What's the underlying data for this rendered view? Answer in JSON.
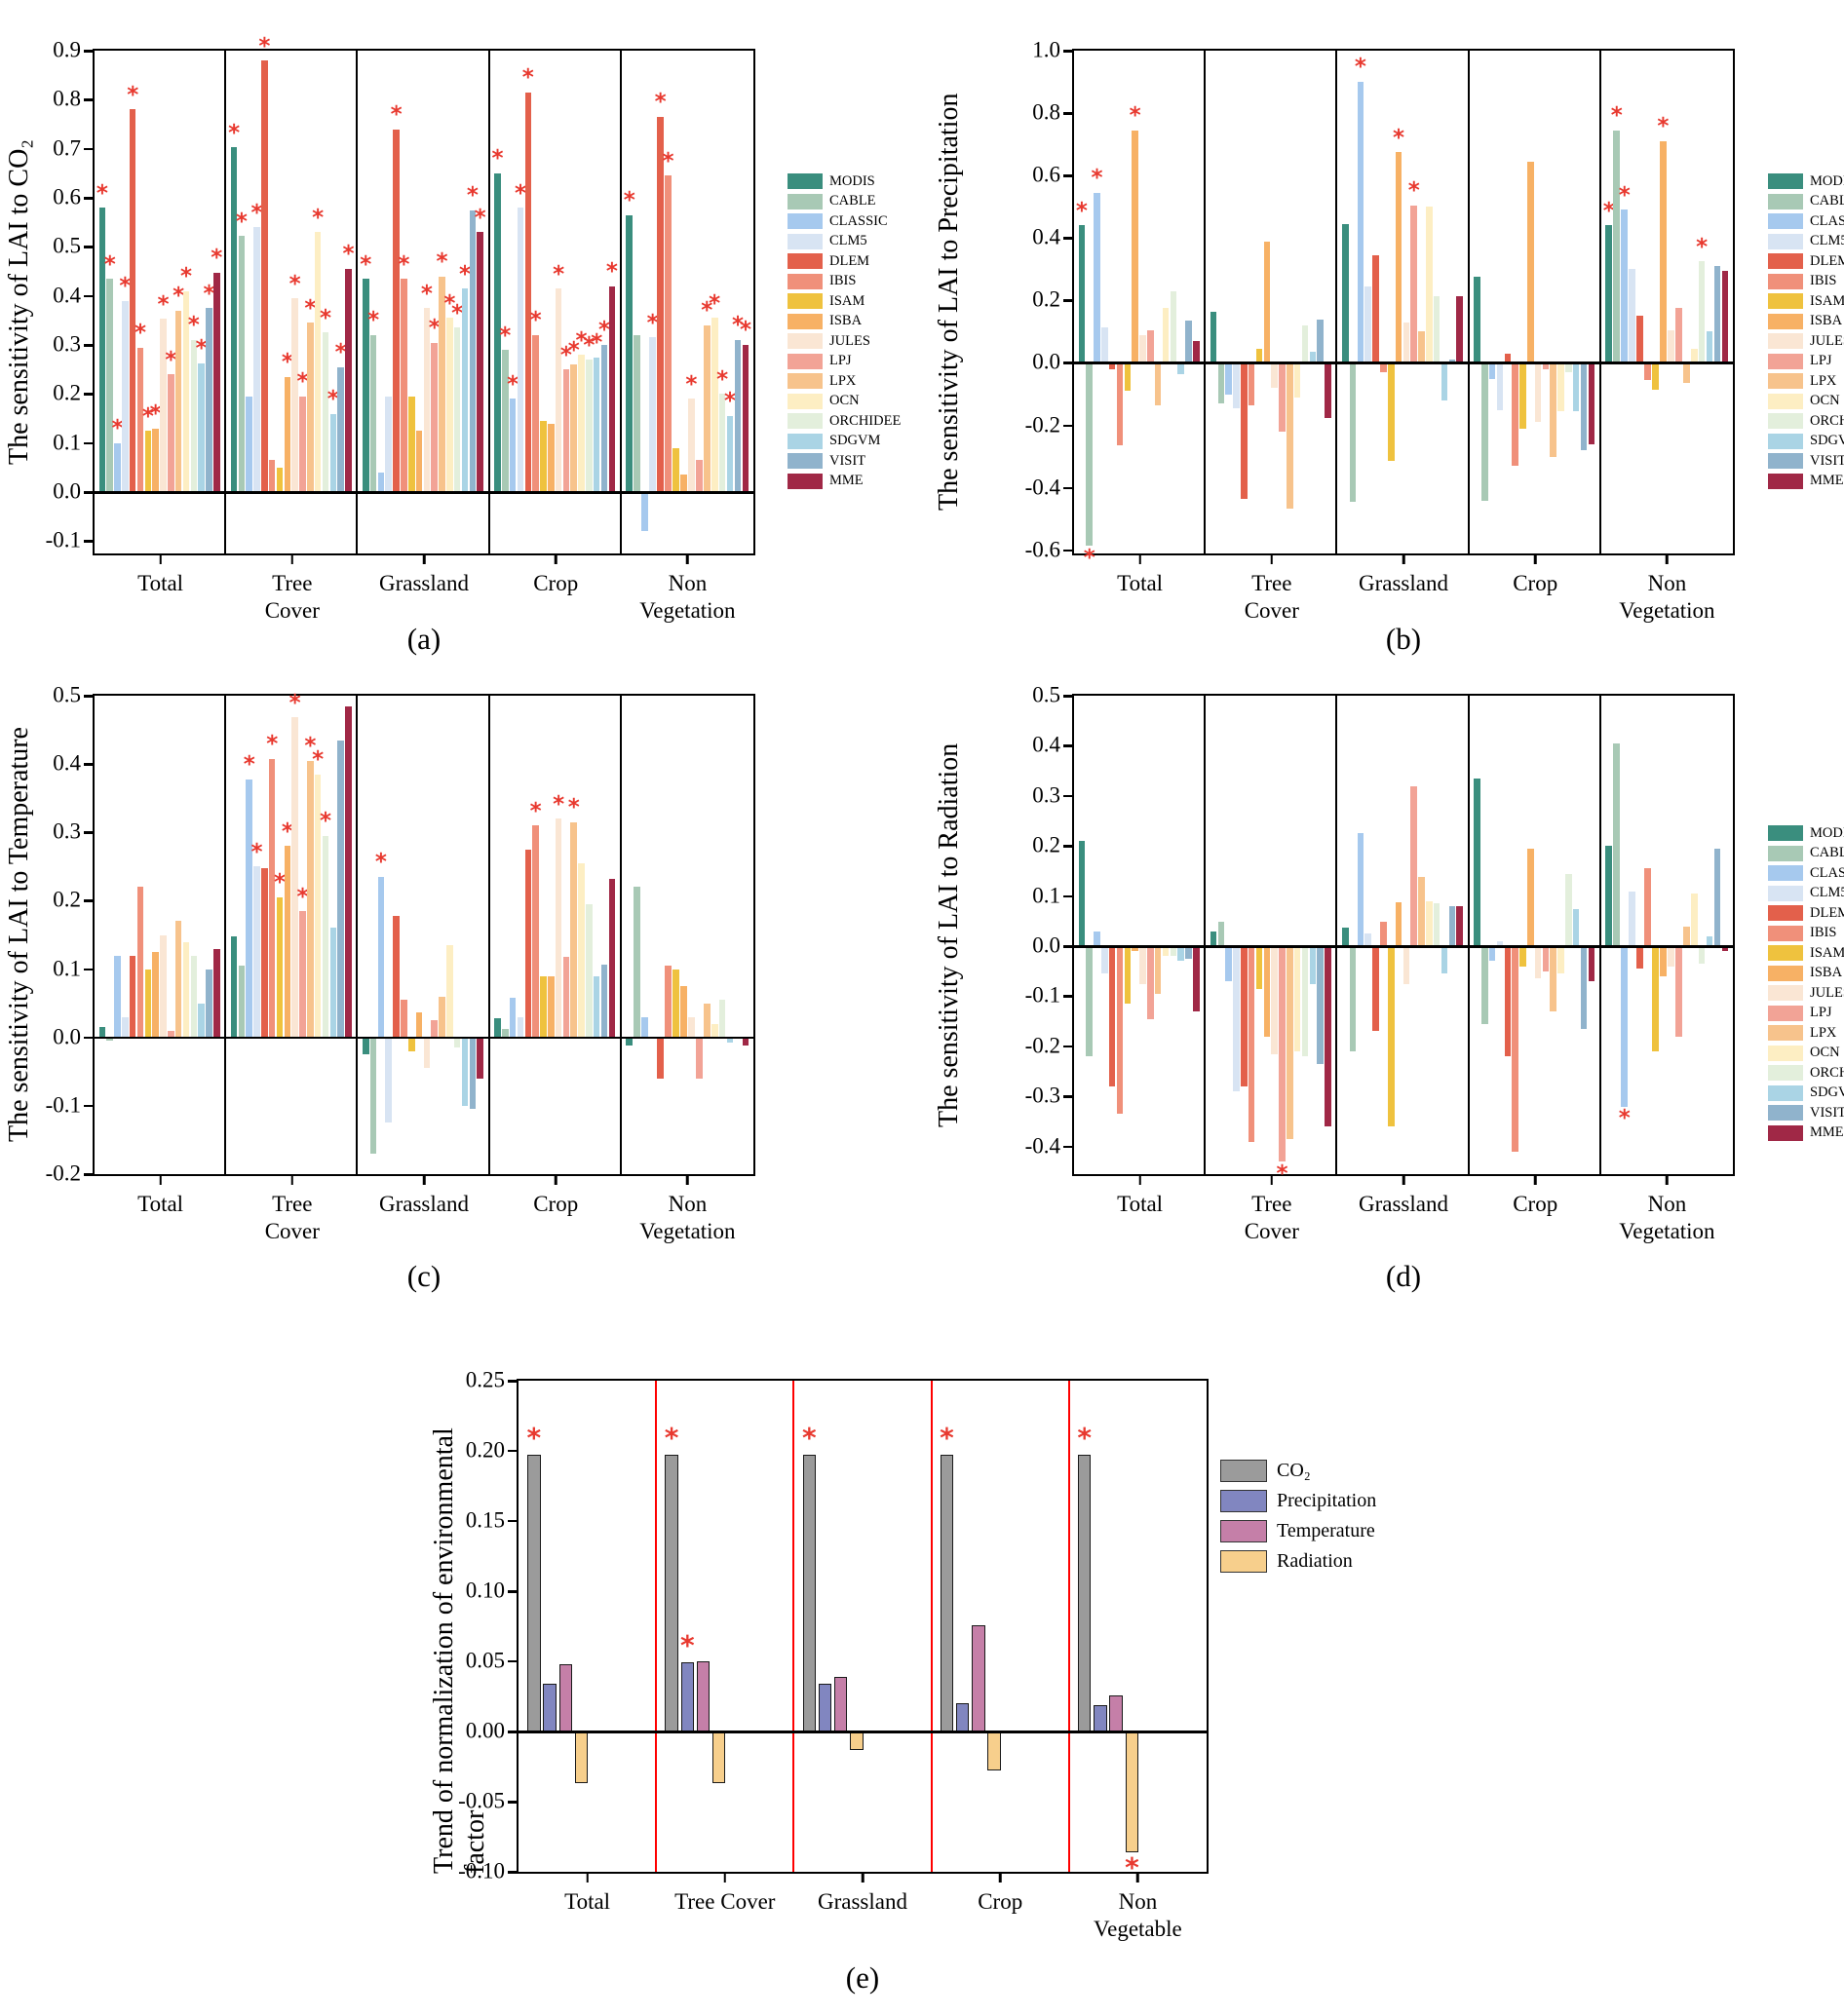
{
  "models": [
    {
      "label": "MODIS",
      "color": "#3a8e7e"
    },
    {
      "label": "CABLE",
      "color": "#a8c9b5"
    },
    {
      "label": "CLASSIC",
      "color": "#a6c9ee"
    },
    {
      "label": "CLM5",
      "color": "#d8e4f3"
    },
    {
      "label": "DLEM",
      "color": "#e3604b"
    },
    {
      "label": "IBIS",
      "color": "#f0907a"
    },
    {
      "label": "ISAM",
      "color": "#efc23e"
    },
    {
      "label": "ISBA",
      "color": "#f7b165"
    },
    {
      "label": "JULES",
      "color": "#fae6d4"
    },
    {
      "label": "LPJ",
      "color": "#f2a396"
    },
    {
      "label": "LPX",
      "color": "#f7c38c"
    },
    {
      "label": "OCN",
      "color": "#fdeec3"
    },
    {
      "label": "ORCHIDEE",
      "color": "#e3efdc"
    },
    {
      "label": "SDGVM",
      "color": "#aad4e5"
    },
    {
      "label": "VISIT",
      "color": "#90b3cc"
    },
    {
      "label": "MME",
      "color": "#a02846"
    }
  ],
  "star_color": "#e8392f",
  "chart_data": [
    {
      "id": "a",
      "type": "bar",
      "letter": "(a)",
      "ylabel": "The sensitivity of LAI to CO₂",
      "ymax": 0.9,
      "ymin": -0.125,
      "yticks": [
        "0.9",
        "0.8",
        "0.7",
        "0.6",
        "0.5",
        "0.4",
        "0.3",
        "0.2",
        "0.1",
        "0.0",
        "-0.1"
      ],
      "categories": [
        "Total",
        "Tree\nCover",
        "Grassland",
        "Crop",
        "Non\nVegetation"
      ],
      "values": [
        [
          0.58,
          0.435,
          0.1,
          0.39,
          0.78,
          0.295,
          0.125,
          0.13,
          0.353,
          0.24,
          0.37,
          0.41,
          0.31,
          0.263,
          0.375,
          0.448
        ],
        [
          0.703,
          0.522,
          0.195,
          0.54,
          0.88,
          0.065,
          0.05,
          0.235,
          0.395,
          0.195,
          0.345,
          0.53,
          0.325,
          0.16,
          0.255,
          0.455
        ],
        [
          0.435,
          0.32,
          0.04,
          0.195,
          0.74,
          0.435,
          0.195,
          0.125,
          0.375,
          0.305,
          0.44,
          0.355,
          0.335,
          0.415,
          0.575,
          0.53
        ],
        [
          0.65,
          0.29,
          0.19,
          0.58,
          0.815,
          0.32,
          0.145,
          0.14,
          0.415,
          0.25,
          0.26,
          0.28,
          0.27,
          0.275,
          0.3,
          0.42
        ],
        [
          0.565,
          0.32,
          -0.08,
          0.315,
          0.765,
          0.645,
          0.09,
          0.035,
          0.19,
          0.065,
          0.34,
          0.355,
          0.2,
          0.155,
          0.31,
          0.3
        ]
      ],
      "stars": [
        [
          1,
          1,
          1,
          1,
          1,
          1,
          1,
          1,
          1,
          1,
          1,
          1,
          1,
          1,
          1,
          1
        ],
        [
          1,
          1,
          0,
          1,
          1,
          0,
          0,
          1,
          1,
          1,
          1,
          1,
          1,
          1,
          1,
          1
        ],
        [
          1,
          1,
          0,
          0,
          1,
          1,
          0,
          0,
          1,
          1,
          1,
          1,
          1,
          1,
          1,
          1
        ],
        [
          1,
          1,
          1,
          1,
          1,
          1,
          0,
          0,
          1,
          1,
          1,
          1,
          1,
          1,
          1,
          1
        ],
        [
          1,
          0,
          0,
          1,
          1,
          1,
          0,
          0,
          1,
          0,
          1,
          1,
          1,
          1,
          1,
          1
        ]
      ]
    },
    {
      "id": "b",
      "type": "bar",
      "letter": "(b)",
      "ylabel": "The sensitivity of LAI to Precipitation",
      "ymax": 1.0,
      "ymin": -0.61,
      "yticks": [
        "1.0",
        "0.8",
        "0.6",
        "0.4",
        "0.2",
        "0.0",
        "-0.2",
        "-0.4",
        "-0.6"
      ],
      "categories": [
        "Total",
        "Tree\nCover",
        "Grassland",
        "Crop",
        "Non\nVegetation"
      ],
      "values": [
        [
          0.44,
          -0.585,
          0.545,
          0.115,
          -0.02,
          -0.265,
          -0.09,
          0.745,
          0.09,
          0.105,
          -0.135,
          0.175,
          0.23,
          -0.035,
          0.135,
          0.07
        ],
        [
          0.165,
          -0.13,
          -0.1,
          -0.145,
          -0.435,
          -0.135,
          0.045,
          0.39,
          -0.08,
          -0.22,
          -0.465,
          -0.11,
          0.12,
          0.035,
          0.14,
          -0.175
        ],
        [
          0.445,
          -0.445,
          0.9,
          0.245,
          0.345,
          -0.03,
          -0.315,
          0.675,
          0.13,
          0.505,
          0.1,
          0.5,
          0.215,
          -0.12,
          0.01,
          0.215
        ],
        [
          0.275,
          -0.44,
          -0.05,
          -0.15,
          0.03,
          -0.33,
          -0.21,
          0.645,
          -0.19,
          -0.02,
          -0.3,
          -0.155,
          -0.03,
          -0.155,
          -0.28,
          -0.26
        ],
        [
          0.44,
          0.745,
          0.49,
          0.3,
          0.15,
          -0.055,
          -0.085,
          0.71,
          0.105,
          0.175,
          -0.065,
          0.045,
          0.325,
          0.1,
          0.31,
          0.295
        ]
      ],
      "stars": [
        [
          1,
          1,
          1,
          0,
          0,
          0,
          0,
          1,
          0,
          0,
          0,
          0,
          0,
          0,
          0,
          0
        ],
        [
          0,
          0,
          0,
          0,
          0,
          0,
          0,
          0,
          0,
          0,
          0,
          0,
          0,
          0,
          0,
          0
        ],
        [
          0,
          0,
          1,
          0,
          0,
          0,
          0,
          1,
          0,
          1,
          0,
          0,
          0,
          0,
          0,
          0
        ],
        [
          0,
          0,
          0,
          0,
          0,
          0,
          0,
          0,
          0,
          0,
          0,
          0,
          0,
          0,
          0,
          0
        ],
        [
          1,
          1,
          1,
          0,
          0,
          0,
          0,
          1,
          0,
          0,
          0,
          0,
          1,
          0,
          0,
          0
        ]
      ]
    },
    {
      "id": "c",
      "type": "bar",
      "letter": "(c)",
      "ylabel": "The sensitivity of LAI to Temperature",
      "ymax": 0.5,
      "ymin": -0.2,
      "yticks": [
        "0.5",
        "0.4",
        "0.3",
        "0.2",
        "0.1",
        "0.0",
        "-0.1",
        "-0.2"
      ],
      "categories": [
        "Total",
        "Tree\nCover",
        "Grassland",
        "Crop",
        "Non\nVegetation"
      ],
      "values": [
        [
          0.015,
          -0.005,
          0.12,
          0.03,
          0.12,
          0.22,
          0.1,
          0.125,
          0.15,
          0.01,
          0.17,
          0.14,
          0.12,
          0.05,
          0.1,
          0.13
        ],
        [
          0.148,
          0.105,
          0.378,
          0.25,
          0.248,
          0.408,
          0.205,
          0.28,
          0.468,
          0.185,
          0.405,
          0.385,
          0.295,
          0.16,
          0.435,
          0.485
        ],
        [
          -0.025,
          -0.17,
          0.235,
          -0.125,
          0.178,
          0.055,
          -0.02,
          0.037,
          -0.045,
          0.025,
          0.06,
          0.135,
          -0.015,
          -0.1,
          -0.105,
          -0.06
        ],
        [
          0.028,
          0.012,
          0.058,
          0.03,
          0.275,
          0.31,
          0.09,
          0.09,
          0.32,
          0.118,
          0.315,
          0.255,
          0.195,
          0.09,
          0.107,
          0.232
        ],
        [
          -0.012,
          0.22,
          0.03,
          0.0,
          -0.06,
          0.105,
          0.1,
          0.075,
          0.03,
          -0.06,
          0.05,
          0.02,
          0.055,
          -0.008,
          0.0,
          -0.012
        ]
      ],
      "stars": [
        [
          0,
          0,
          0,
          0,
          0,
          0,
          0,
          0,
          0,
          0,
          0,
          0,
          0,
          0,
          0,
          0
        ],
        [
          0,
          0,
          1,
          1,
          0,
          1,
          1,
          1,
          1,
          1,
          1,
          1,
          1,
          0,
          0,
          0
        ],
        [
          0,
          0,
          1,
          0,
          0,
          0,
          0,
          0,
          0,
          0,
          0,
          0,
          0,
          0,
          0,
          0
        ],
        [
          0,
          0,
          0,
          0,
          0,
          1,
          0,
          0,
          1,
          0,
          1,
          0,
          0,
          0,
          0,
          0
        ],
        [
          0,
          0,
          0,
          0,
          0,
          0,
          0,
          0,
          0,
          0,
          0,
          0,
          0,
          0,
          0,
          0
        ]
      ]
    },
    {
      "id": "d",
      "type": "bar",
      "letter": "(d)",
      "ylabel": "The sensitivity of LAI to Radiation",
      "ymax": 0.5,
      "ymin": -0.455,
      "yticks": [
        "0.5",
        "0.4",
        "0.3",
        "0.2",
        "0.1",
        "0.0",
        "-0.1",
        "-0.2",
        "-0.3",
        "-0.4"
      ],
      "categories": [
        "Total",
        "Tree\nCover",
        "Grassland",
        "Crop",
        "Non\nVegetation"
      ],
      "values": [
        [
          0.21,
          -0.22,
          0.03,
          -0.055,
          -0.28,
          -0.335,
          -0.115,
          -0.01,
          -0.075,
          -0.145,
          -0.095,
          -0.02,
          -0.02,
          -0.03,
          -0.025,
          -0.13
        ],
        [
          0.03,
          0.048,
          -0.07,
          -0.29,
          -0.28,
          -0.39,
          -0.085,
          -0.18,
          -0.215,
          -0.43,
          -0.385,
          -0.21,
          -0.22,
          -0.075,
          -0.235,
          -0.36
        ],
        [
          0.038,
          -0.21,
          0.225,
          0.025,
          -0.17,
          0.048,
          -0.36,
          0.087,
          -0.075,
          0.32,
          0.138,
          0.09,
          0.085,
          -0.055,
          0.08,
          0.08
        ],
        [
          0.335,
          -0.155,
          -0.03,
          0.01,
          -0.22,
          -0.41,
          -0.04,
          0.195,
          -0.065,
          -0.05,
          -0.13,
          -0.055,
          0.145,
          0.075,
          -0.165,
          -0.07
        ],
        [
          0.2,
          0.405,
          -0.32,
          0.11,
          -0.045,
          0.155,
          -0.21,
          -0.06,
          -0.04,
          -0.18,
          0.04,
          0.105,
          -0.035,
          0.02,
          0.195,
          -0.01
        ]
      ],
      "stars": [
        [
          0,
          0,
          0,
          0,
          0,
          0,
          0,
          0,
          0,
          0,
          0,
          0,
          0,
          0,
          0,
          0
        ],
        [
          0,
          0,
          0,
          0,
          0,
          0,
          0,
          0,
          0,
          1,
          0,
          0,
          0,
          0,
          0,
          0
        ],
        [
          0,
          0,
          0,
          0,
          0,
          0,
          0,
          0,
          0,
          0,
          0,
          0,
          0,
          0,
          0,
          0
        ],
        [
          0,
          0,
          0,
          0,
          0,
          0,
          0,
          0,
          0,
          0,
          0,
          0,
          0,
          0,
          0,
          0
        ],
        [
          0,
          0,
          1,
          0,
          0,
          0,
          0,
          0,
          0,
          0,
          0,
          0,
          0,
          0,
          0,
          0
        ]
      ]
    },
    {
      "id": "e",
      "type": "bar",
      "letter": "(e)",
      "ylabel": "Trend of normalization of environmental factor",
      "ymax": 0.25,
      "ymin": -0.1,
      "yticks": [
        "0.25",
        "0.20",
        "0.15",
        "0.10",
        "0.05",
        "0.00",
        "-0.05",
        "-0.10"
      ],
      "categories": [
        "Total",
        "Tree Cover",
        "Grassland",
        "Crop",
        "Non\nVegetable"
      ],
      "series": [
        {
          "name": "CO₂",
          "color": "#9b9b9b",
          "values": [
            0.197,
            0.197,
            0.197,
            0.197,
            0.197
          ],
          "stars": [
            1,
            1,
            1,
            1,
            1
          ]
        },
        {
          "name": "Precipitation",
          "color": "#8186c0",
          "values": [
            0.034,
            0.049,
            0.034,
            0.02,
            0.019
          ],
          "stars": [
            0,
            1,
            0,
            0,
            0
          ]
        },
        {
          "name": "Temperature",
          "color": "#c57fa8",
          "values": [
            0.048,
            0.05,
            0.039,
            0.076,
            0.026
          ],
          "stars": [
            0,
            0,
            0,
            0,
            0
          ]
        },
        {
          "name": "Radiation",
          "color": "#f7cf8c",
          "values": [
            -0.037,
            -0.037,
            -0.013,
            -0.028,
            -0.086
          ],
          "stars": [
            0,
            0,
            0,
            0,
            1
          ]
        }
      ]
    }
  ]
}
